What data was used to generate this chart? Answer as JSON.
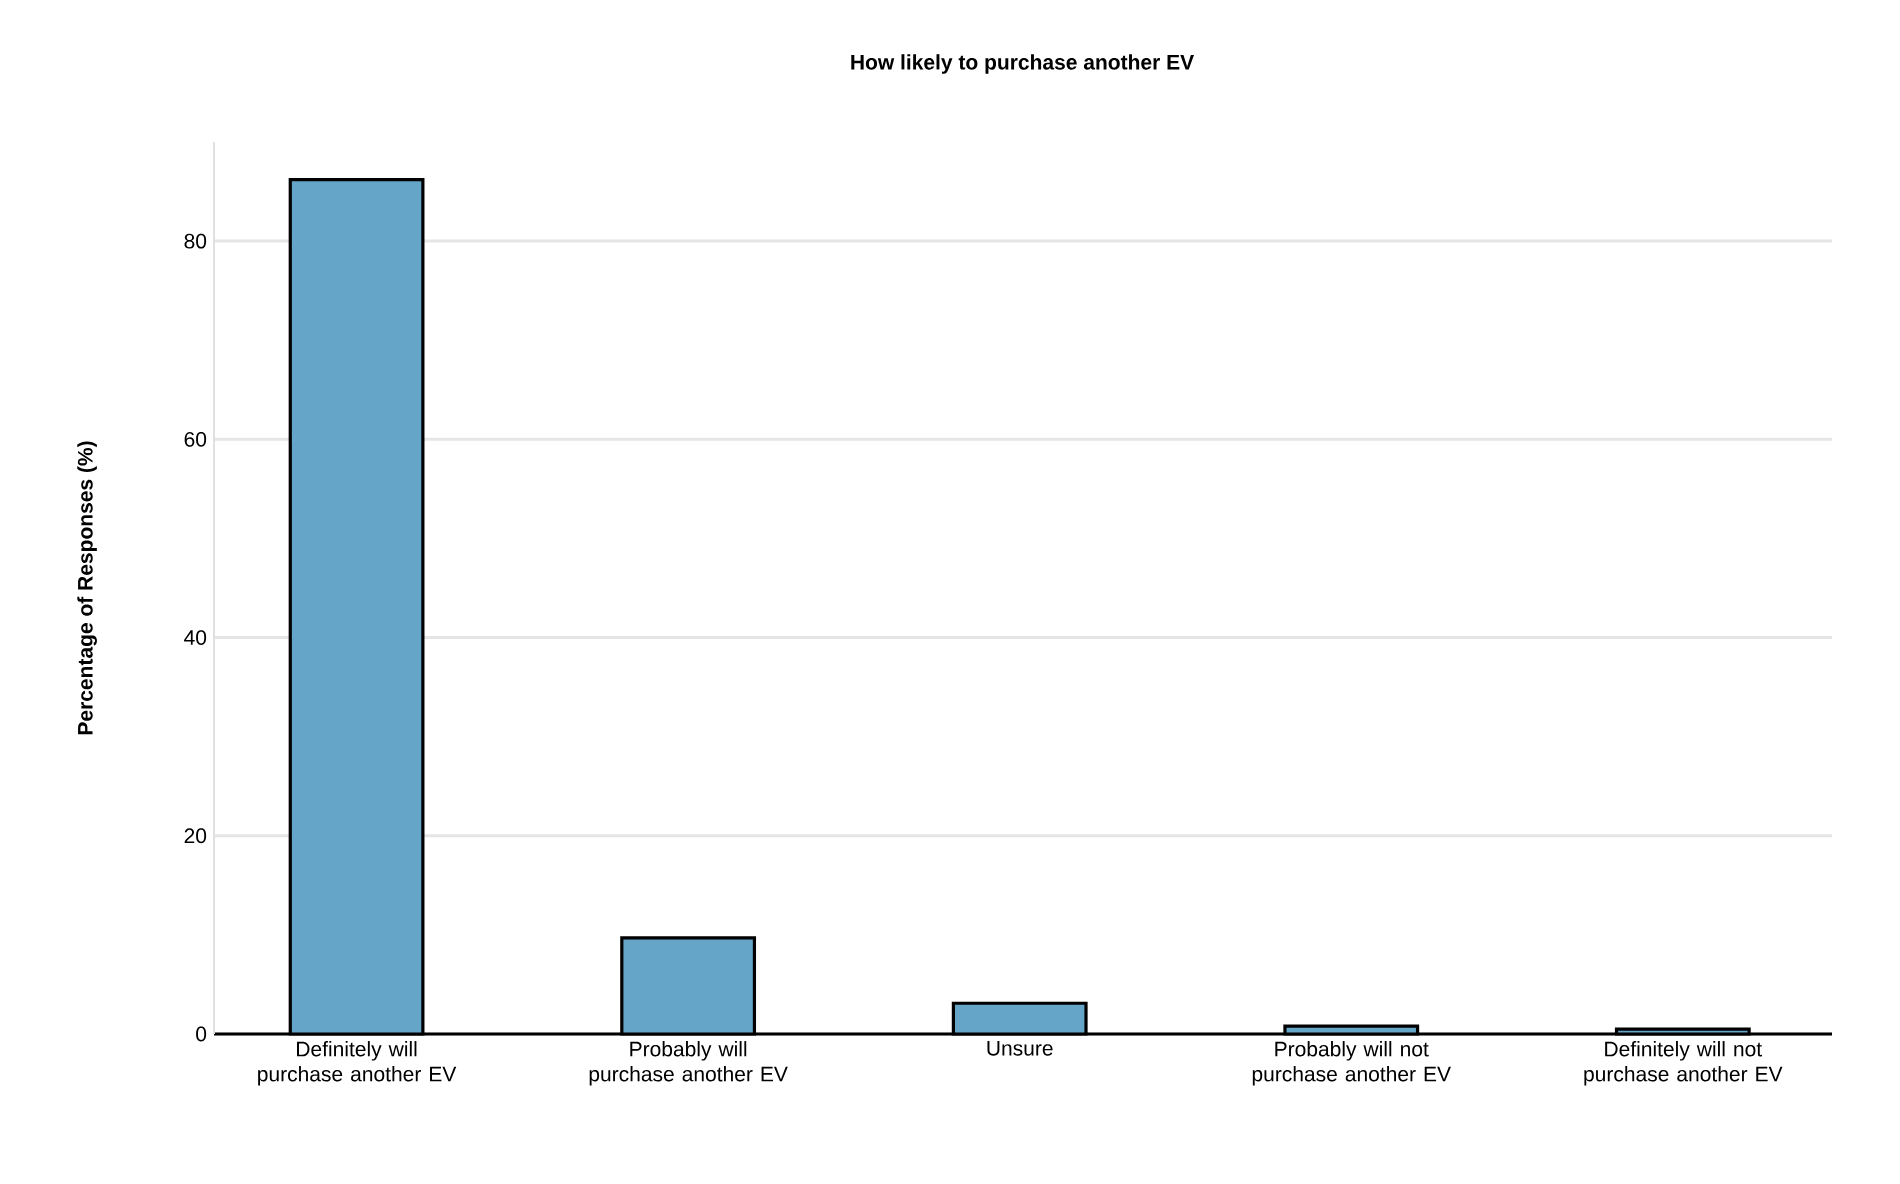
{
  "chart_data": {
    "type": "bar",
    "title": "How likely to purchase another EV",
    "ylabel": "Percentage of Responses (%)",
    "categories": [
      "Definitely will purchase another EV",
      "Probably will purchase another EV",
      "Unsure",
      "Probably will not purchase another EV",
      "Definitely will not purchase another EV"
    ],
    "values": [
      86.2,
      9.7,
      3.1,
      0.8,
      0.5
    ],
    "color": "#65a5c8",
    "ylim": [
      0,
      90
    ],
    "yticks": [
      0,
      20,
      40,
      60,
      80
    ],
    "grid": "y"
  }
}
